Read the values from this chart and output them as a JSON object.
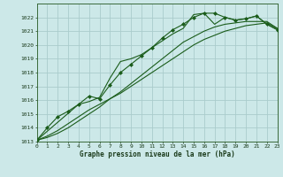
{
  "title": "Graphe pression niveau de la mer (hPa)",
  "bg_color": "#cce8e8",
  "grid_color": "#aacccc",
  "line_color": "#1a5c1a",
  "marker_color": "#1a5c1a",
  "xmin": 0,
  "xmax": 23,
  "ymin": 1013,
  "ymax": 1023,
  "yticks": [
    1013,
    1014,
    1015,
    1016,
    1017,
    1018,
    1019,
    1020,
    1021,
    1022
  ],
  "series": [
    {
      "x": [
        0,
        1,
        2,
        3,
        4,
        5,
        6,
        7,
        8,
        9,
        10,
        11,
        12,
        13,
        14,
        15,
        16,
        17,
        18,
        19,
        20,
        21,
        22,
        23
      ],
      "y": [
        1013.1,
        1014.0,
        1014.8,
        1015.2,
        1015.7,
        1016.3,
        1016.1,
        1017.1,
        1018.0,
        1018.6,
        1019.2,
        1019.8,
        1020.5,
        1021.1,
        1021.5,
        1022.0,
        1022.3,
        1022.3,
        1022.0,
        1021.8,
        1021.9,
        1022.1,
        1021.5,
        1021.1
      ],
      "has_markers": true
    },
    {
      "x": [
        0,
        1,
        2,
        3,
        4,
        5,
        6,
        7,
        8,
        9,
        10,
        11,
        12,
        13,
        14,
        15,
        16,
        17,
        18,
        19,
        20,
        21,
        22,
        23
      ],
      "y": [
        1013.1,
        1013.4,
        1013.8,
        1014.3,
        1014.8,
        1015.3,
        1015.7,
        1016.1,
        1016.5,
        1017.0,
        1017.5,
        1018.0,
        1018.5,
        1019.0,
        1019.5,
        1020.0,
        1020.4,
        1020.7,
        1021.0,
        1021.2,
        1021.4,
        1021.5,
        1021.6,
        1021.2
      ],
      "has_markers": false
    },
    {
      "x": [
        0,
        1,
        2,
        3,
        4,
        5,
        6,
        7,
        8,
        9,
        10,
        11,
        12,
        13,
        14,
        15,
        16,
        17,
        18,
        19,
        20,
        21,
        22,
        23
      ],
      "y": [
        1013.1,
        1013.3,
        1013.6,
        1014.0,
        1014.5,
        1015.0,
        1015.5,
        1016.1,
        1016.6,
        1017.2,
        1017.8,
        1018.4,
        1019.0,
        1019.6,
        1020.2,
        1020.6,
        1021.0,
        1021.3,
        1021.5,
        1021.6,
        1021.7,
        1021.7,
        1021.7,
        1021.2
      ],
      "has_markers": false
    },
    {
      "x": [
        0,
        4,
        5,
        6,
        7,
        8,
        9,
        10,
        11,
        12,
        13,
        14,
        15,
        16,
        17,
        18,
        19,
        20,
        21,
        22,
        23
      ],
      "y": [
        1013.1,
        1015.7,
        1015.9,
        1016.2,
        1017.6,
        1018.8,
        1019.0,
        1019.3,
        1019.8,
        1020.3,
        1020.8,
        1021.2,
        1022.2,
        1022.3,
        1021.5,
        1022.0,
        1021.8,
        1021.9,
        1022.1,
        1021.5,
        1021.1
      ],
      "has_markers": false
    }
  ]
}
